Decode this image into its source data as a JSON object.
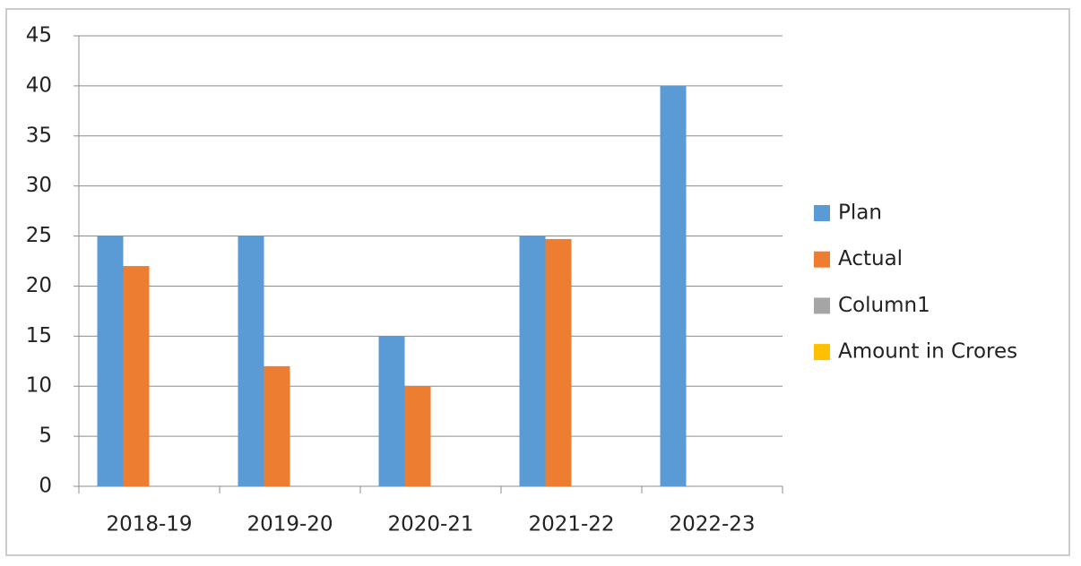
{
  "chart_data": {
    "type": "bar",
    "categories": [
      "2018-19",
      "2019-20",
      "2020-21",
      "2021-22",
      "2022-23"
    ],
    "series": [
      {
        "name": "Plan",
        "color": "#5b9bd5",
        "values": [
          25,
          25,
          15,
          25,
          40
        ]
      },
      {
        "name": "Actual",
        "color": "#ed7d31",
        "values": [
          22,
          12,
          10,
          24.7,
          null
        ]
      },
      {
        "name": "Column1",
        "color": "#a5a5a5",
        "values": [
          null,
          null,
          null,
          null,
          null
        ]
      },
      {
        "name": "Amount in Crores",
        "color": "#ffc000",
        "values": [
          null,
          null,
          null,
          null,
          null
        ]
      }
    ],
    "ylim": [
      0,
      45
    ],
    "yticks": [
      0,
      5,
      10,
      15,
      20,
      25,
      30,
      35,
      40,
      45
    ],
    "grid": true,
    "legend": "right"
  }
}
